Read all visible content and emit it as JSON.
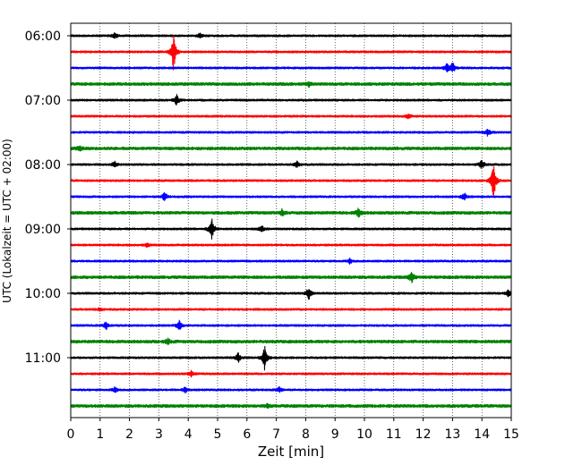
{
  "chart_data": {
    "type": "line",
    "title": "",
    "xlabel": "Zeit  [min]",
    "ylabel": "UTC (Lokalzeit = UTC + 02:00)",
    "xlim": [
      0,
      15
    ],
    "x_ticks": [
      0,
      1,
      2,
      3,
      4,
      5,
      6,
      7,
      8,
      9,
      10,
      11,
      12,
      13,
      14,
      15
    ],
    "x_tick_labels": [
      "0",
      "1",
      "2",
      "3",
      "4",
      "5",
      "6",
      "7",
      "8",
      "9",
      "10",
      "11",
      "12",
      "13",
      "14",
      "15"
    ],
    "y_tick_labels": [
      "06:00",
      "07:00",
      "08:00",
      "09:00",
      "10:00",
      "11:00"
    ],
    "y_tick_traces": [
      0,
      4,
      8,
      12,
      16,
      20
    ],
    "trace_minutes": 15,
    "start_time": "06:00",
    "vertical_grid": "dotted",
    "horizontal_grid": false,
    "colors": [
      "#000000",
      "#ff0000",
      "#0000ff",
      "#008000"
    ],
    "traces": [
      {
        "start": "06:00",
        "events": [
          {
            "x": 1.5,
            "a": 4
          },
          {
            "x": 4.4,
            "a": 3
          }
        ]
      },
      {
        "start": "06:15",
        "events": [
          {
            "x": 3.5,
            "a": 24
          }
        ]
      },
      {
        "start": "06:30",
        "events": [
          {
            "x": 12.8,
            "a": 5
          },
          {
            "x": 13.0,
            "a": 8
          }
        ]
      },
      {
        "start": "06:45",
        "events": [
          {
            "x": 8.1,
            "a": 3
          }
        ]
      },
      {
        "start": "07:00",
        "events": [
          {
            "x": 3.6,
            "a": 7
          }
        ]
      },
      {
        "start": "07:15",
        "events": [
          {
            "x": 11.5,
            "a": 3
          }
        ]
      },
      {
        "start": "07:30",
        "events": [
          {
            "x": 14.2,
            "a": 5
          }
        ]
      },
      {
        "start": "07:45",
        "events": [
          {
            "x": 0.3,
            "a": 3
          }
        ]
      },
      {
        "start": "08:00",
        "events": [
          {
            "x": 1.5,
            "a": 4
          },
          {
            "x": 7.7,
            "a": 4
          },
          {
            "x": 14.0,
            "a": 6
          }
        ]
      },
      {
        "start": "08:15",
        "events": [
          {
            "x": 14.4,
            "a": 24
          }
        ]
      },
      {
        "start": "08:30",
        "events": [
          {
            "x": 3.2,
            "a": 7
          },
          {
            "x": 13.4,
            "a": 5
          }
        ]
      },
      {
        "start": "08:45",
        "events": [
          {
            "x": 7.2,
            "a": 4
          },
          {
            "x": 9.8,
            "a": 6
          }
        ]
      },
      {
        "start": "09:00",
        "events": [
          {
            "x": 4.8,
            "a": 16
          },
          {
            "x": 6.5,
            "a": 4
          }
        ]
      },
      {
        "start": "09:15",
        "events": [
          {
            "x": 2.6,
            "a": 2
          }
        ]
      },
      {
        "start": "09:30",
        "events": [
          {
            "x": 9.5,
            "a": 3
          }
        ]
      },
      {
        "start": "09:45",
        "events": [
          {
            "x": 11.6,
            "a": 7
          }
        ]
      },
      {
        "start": "10:00",
        "events": [
          {
            "x": 8.1,
            "a": 8
          },
          {
            "x": 14.9,
            "a": 4
          }
        ]
      },
      {
        "start": "10:15",
        "events": [
          {
            "x": 1.0,
            "a": 2
          }
        ]
      },
      {
        "start": "10:30",
        "events": [
          {
            "x": 1.2,
            "a": 5
          },
          {
            "x": 3.7,
            "a": 7
          }
        ]
      },
      {
        "start": "10:45",
        "events": [
          {
            "x": 3.3,
            "a": 4
          }
        ]
      },
      {
        "start": "11:00",
        "events": [
          {
            "x": 5.7,
            "a": 6
          },
          {
            "x": 6.6,
            "a": 14
          }
        ]
      },
      {
        "start": "11:15",
        "events": [
          {
            "x": 4.1,
            "a": 4
          }
        ]
      },
      {
        "start": "11:30",
        "events": [
          {
            "x": 1.5,
            "a": 4
          },
          {
            "x": 3.9,
            "a": 3
          },
          {
            "x": 7.1,
            "a": 3
          }
        ]
      },
      {
        "start": "11:45",
        "events": [
          {
            "x": 6.7,
            "a": 2
          }
        ]
      }
    ]
  }
}
